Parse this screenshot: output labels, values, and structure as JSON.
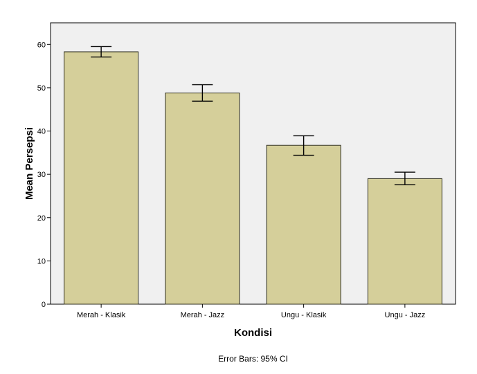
{
  "chart_data": {
    "type": "bar",
    "categories": [
      "Merah - Klasik",
      "Merah - Jazz",
      "Ungu - Klasik",
      "Ungu - Jazz"
    ],
    "values": [
      58.3,
      48.8,
      36.7,
      29.0
    ],
    "error_bars": {
      "lower": [
        57.1,
        46.9,
        34.4,
        27.6
      ],
      "upper": [
        59.5,
        50.7,
        38.9,
        30.5
      ]
    },
    "xlabel": "Kondisi",
    "ylabel": "Mean Persepsi",
    "ylim": [
      0,
      65
    ],
    "yticks": [
      0,
      10,
      20,
      30,
      40,
      50,
      60
    ],
    "grid": false,
    "footnote": "Error Bars: 95% CI",
    "colors": {
      "bar_fill": "#d5cf9a",
      "bar_stroke": "#2d2d1e",
      "plot_background": "#f0f0f0"
    }
  }
}
